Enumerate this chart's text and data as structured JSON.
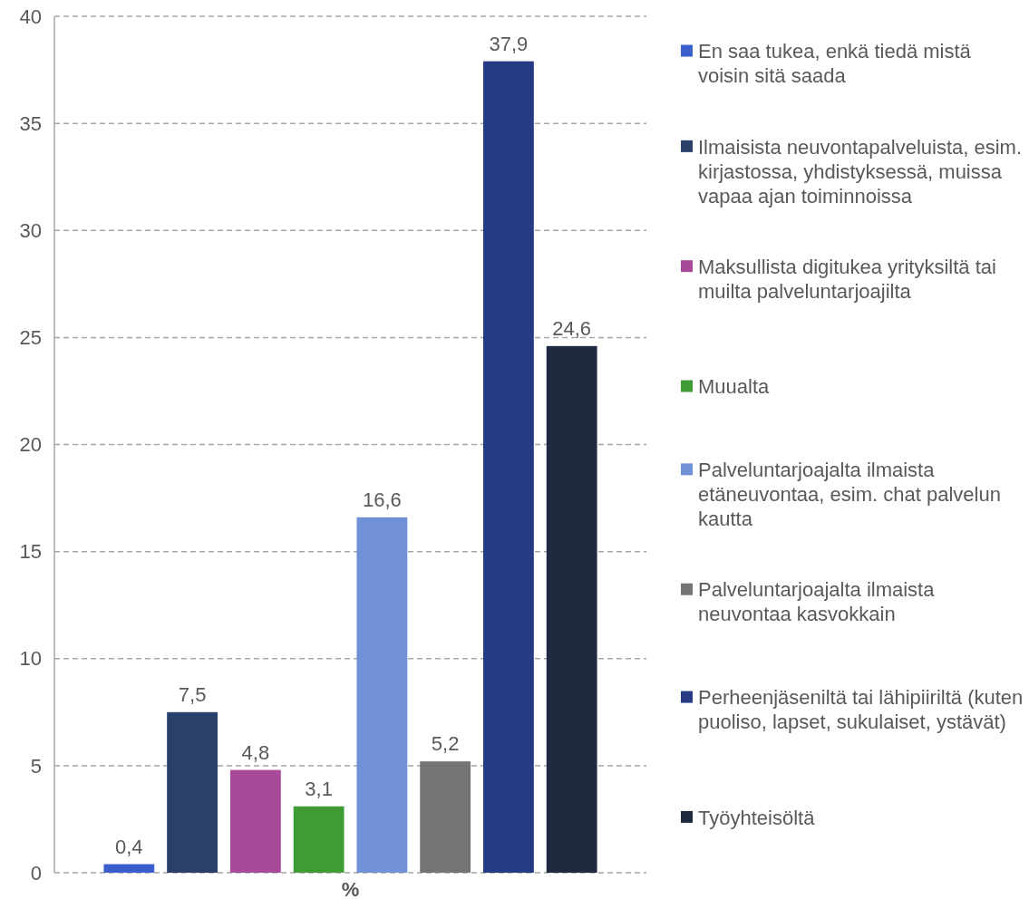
{
  "chart_data": {
    "type": "bar",
    "categories": [
      "%"
    ],
    "ylim": [
      0,
      40
    ],
    "yticks": [
      0,
      5,
      10,
      15,
      20,
      25,
      30,
      35,
      40
    ],
    "grid": "y",
    "line_style": "dashed",
    "legend": "right",
    "series": [
      {
        "name": "En saa tukea, enkä tiedä mistä voisin sitä saada",
        "color": "#3a5fcd",
        "values": [
          0.4
        ],
        "value_labels": [
          "0,4"
        ]
      },
      {
        "name": "Ilmaisista neuvontapalveluista, esim. kirjastossa, yhdistyksessä, muissa vapaa ajan toiminnoissa",
        "color": "#2a4068",
        "values": [
          7.5
        ],
        "value_labels": [
          "7,5"
        ]
      },
      {
        "name": "Maksullista digitukea yrityksiltä tai muilta palveluntarjoajilta",
        "color": "#a8499a",
        "values": [
          4.8
        ],
        "value_labels": [
          "4,8"
        ]
      },
      {
        "name": "Muualta",
        "color": "#3f9c35",
        "values": [
          3.1
        ],
        "value_labels": [
          "3,1"
        ]
      },
      {
        "name": "Palveluntarjoajalta ilmaista etäneuvontaa, esim. chat palvelun kautta",
        "color": "#7090d8",
        "values": [
          16.6
        ],
        "value_labels": [
          "16,6"
        ]
      },
      {
        "name": "Palveluntarjoajalta ilmaista neuvontaa kasvokkain",
        "color": "#747474",
        "values": [
          5.2
        ],
        "value_labels": [
          "5,2"
        ]
      },
      {
        "name": "Perheenjäseniltä tai lähipiiriltä (kuten puoliso, lapset, sukulaiset, ystävät)",
        "color": "#263a85",
        "values": [
          37.9
        ],
        "value_labels": [
          "37,9"
        ]
      },
      {
        "name": "Työyhteisöltä",
        "color": "#1e2a40",
        "values": [
          24.6
        ],
        "value_labels": [
          "24,6"
        ]
      }
    ]
  }
}
